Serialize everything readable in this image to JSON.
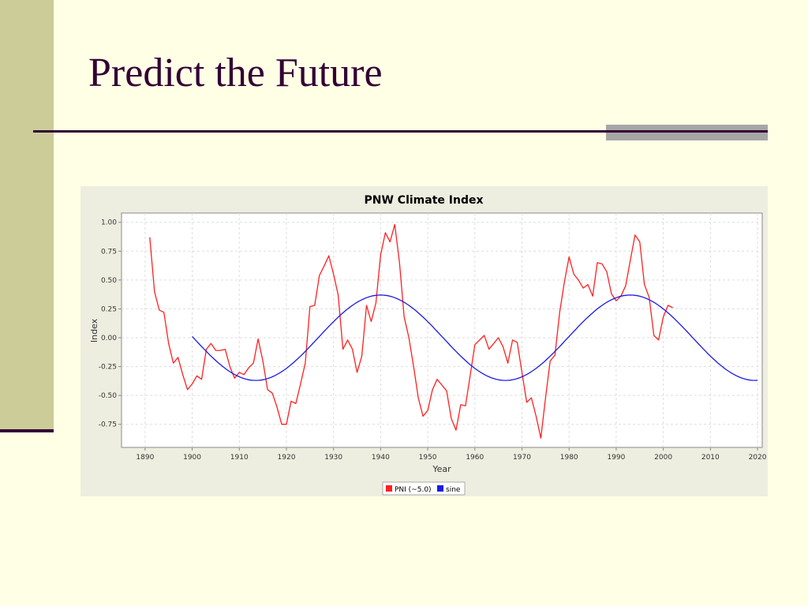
{
  "slide": {
    "title": "Predict the Future"
  },
  "colors": {
    "background": "#FFFFE6",
    "sidebar": "#CCCC99",
    "accent_dark": "#330033",
    "accent_gray": "#A6A6A6"
  },
  "chart_data": {
    "type": "line",
    "title": "PNW Climate Index",
    "xlabel": "Year",
    "ylabel": "Index",
    "xlim": [
      1885,
      2021
    ],
    "ylim": [
      -0.95,
      1.08
    ],
    "x_ticks": [
      1890,
      1900,
      1910,
      1920,
      1930,
      1940,
      1950,
      1960,
      1970,
      1980,
      1990,
      2000,
      2010,
      2020
    ],
    "y_ticks": [
      1.0,
      0.75,
      0.5,
      0.25,
      0.0,
      -0.25,
      -0.5,
      -0.75
    ],
    "y_tick_labels": [
      "1.00",
      "0.75",
      "0.50",
      "0.25",
      "0.00",
      "-0.25",
      "-0.50",
      "-0.75"
    ],
    "grid": true,
    "legend_position": "bottom-center",
    "series": [
      {
        "name": "PNI (~5.0)",
        "color": "#FF2020",
        "x": [
          1891,
          1892,
          1893,
          1894,
          1895,
          1896,
          1897,
          1898,
          1899,
          1900,
          1901,
          1902,
          1903,
          1904,
          1905,
          1906,
          1907,
          1908,
          1909,
          1910,
          1911,
          1912,
          1913,
          1914,
          1915,
          1916,
          1917,
          1918,
          1919,
          1920,
          1921,
          1922,
          1923,
          1924,
          1925,
          1926,
          1927,
          1928,
          1929,
          1930,
          1931,
          1932,
          1933,
          1934,
          1935,
          1936,
          1937,
          1938,
          1939,
          1940,
          1941,
          1942,
          1943,
          1944,
          1945,
          1946,
          1947,
          1948,
          1949,
          1950,
          1951,
          1952,
          1953,
          1954,
          1955,
          1956,
          1957,
          1958,
          1959,
          1960,
          1961,
          1962,
          1963,
          1964,
          1965,
          1966,
          1967,
          1968,
          1969,
          1970,
          1971,
          1972,
          1973,
          1974,
          1975,
          1976,
          1977,
          1978,
          1979,
          1980,
          1981,
          1982,
          1983,
          1984,
          1985,
          1986,
          1987,
          1988,
          1989,
          1990,
          1991,
          1992,
          1993,
          1994,
          1995,
          1996,
          1997,
          1998,
          1999,
          2000,
          2001,
          2002
        ],
        "values": [
          0.87,
          0.4,
          0.24,
          0.22,
          -0.05,
          -0.22,
          -0.17,
          -0.32,
          -0.45,
          -0.4,
          -0.33,
          -0.36,
          -0.1,
          -0.05,
          -0.11,
          -0.11,
          -0.1,
          -0.25,
          -0.35,
          -0.3,
          -0.32,
          -0.26,
          -0.22,
          -0.01,
          -0.2,
          -0.45,
          -0.48,
          -0.6,
          -0.75,
          -0.75,
          -0.55,
          -0.57,
          -0.4,
          -0.22,
          0.27,
          0.28,
          0.54,
          0.62,
          0.71,
          0.55,
          0.37,
          -0.1,
          -0.02,
          -0.1,
          -0.3,
          -0.16,
          0.28,
          0.14,
          0.3,
          0.72,
          0.91,
          0.83,
          0.98,
          0.65,
          0.18,
          0.0,
          -0.25,
          -0.52,
          -0.68,
          -0.63,
          -0.45,
          -0.36,
          -0.41,
          -0.46,
          -0.7,
          -0.8,
          -0.58,
          -0.59,
          -0.33,
          -0.06,
          -0.02,
          0.02,
          -0.1,
          -0.05,
          0.0,
          -0.08,
          -0.22,
          -0.02,
          -0.04,
          -0.3,
          -0.56,
          -0.52,
          -0.68,
          -0.87,
          -0.52,
          -0.2,
          -0.15,
          0.22,
          0.48,
          0.7,
          0.55,
          0.5,
          0.43,
          0.46,
          0.36,
          0.65,
          0.64,
          0.57,
          0.38,
          0.32,
          0.36,
          0.45,
          0.67,
          0.89,
          0.83,
          0.46,
          0.35,
          0.02,
          -0.02,
          0.18,
          0.28,
          0.26
        ]
      },
      {
        "name": "sine",
        "color": "#1A1AE6",
        "x_start": 1900,
        "x_end": 2020,
        "amplitude": 0.37,
        "period_years": 53,
        "mean": 0.0,
        "peak_year": 1940
      }
    ]
  }
}
